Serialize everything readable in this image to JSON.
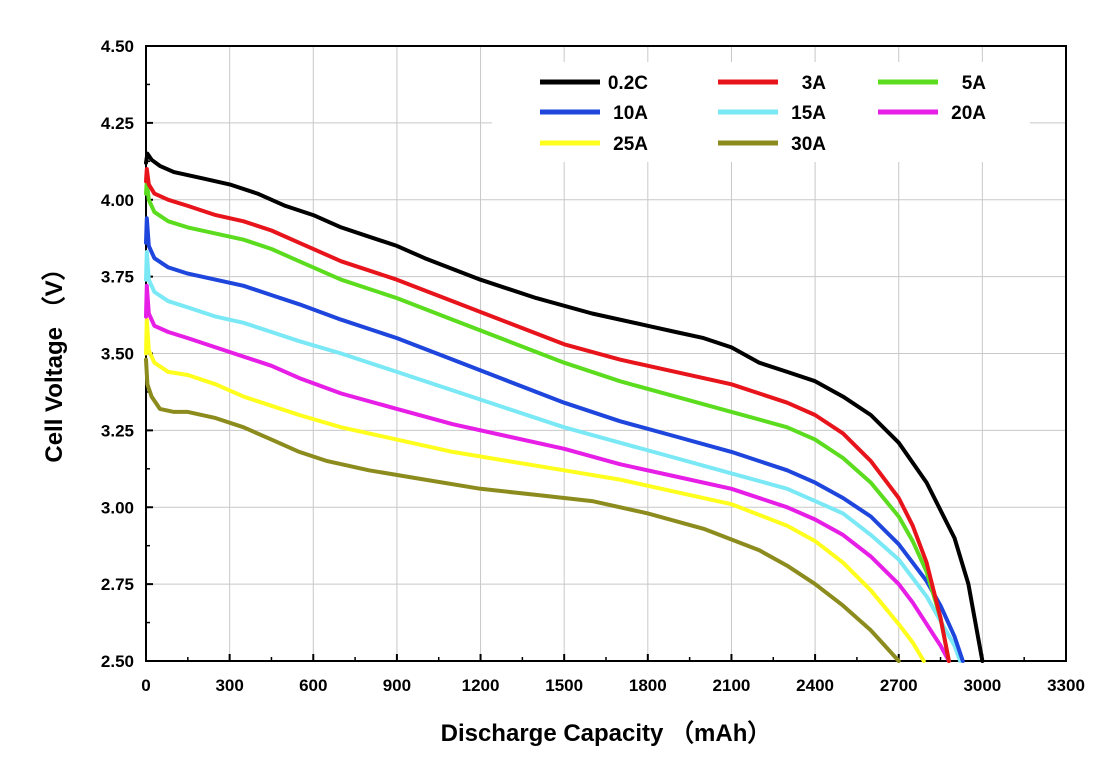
{
  "chart_data": {
    "type": "line",
    "xlabel": "Discharge Capacity （mAh）",
    "ylabel": "Cell Voltage （V）",
    "xlim": [
      0,
      3300
    ],
    "ylim": [
      2.5,
      4.5
    ],
    "x_ticks": [
      "0",
      "300",
      "600",
      "900",
      "1200",
      "1500",
      "1800",
      "2100",
      "2400",
      "2700",
      "3000",
      "3300"
    ],
    "y_ticks": [
      "2.50",
      "2.75",
      "3.00",
      "3.25",
      "3.50",
      "3.75",
      "4.00",
      "4.25",
      "4.50"
    ],
    "grid": true,
    "legend_position": "top-right",
    "series": [
      {
        "name": "0.2C",
        "color": "#000000",
        "x": [
          0,
          5,
          20,
          50,
          100,
          200,
          300,
          400,
          500,
          600,
          700,
          800,
          900,
          1000,
          1200,
          1400,
          1600,
          1800,
          1900,
          2000,
          2100,
          2200,
          2300,
          2400,
          2500,
          2600,
          2700,
          2800,
          2900,
          2950,
          2980,
          3000
        ],
        "y": [
          4.12,
          4.15,
          4.13,
          4.11,
          4.09,
          4.07,
          4.05,
          4.02,
          3.98,
          3.95,
          3.91,
          3.88,
          3.85,
          3.81,
          3.74,
          3.68,
          3.63,
          3.59,
          3.57,
          3.55,
          3.52,
          3.47,
          3.44,
          3.41,
          3.36,
          3.3,
          3.21,
          3.08,
          2.9,
          2.75,
          2.6,
          2.5
        ]
      },
      {
        "name": "3A",
        "color": "#e8141c",
        "x": [
          0,
          3,
          10,
          30,
          80,
          150,
          250,
          350,
          450,
          550,
          700,
          900,
          1100,
          1300,
          1500,
          1700,
          1900,
          2100,
          2300,
          2400,
          2500,
          2600,
          2700,
          2750,
          2800,
          2850,
          2880
        ],
        "y": [
          4.06,
          4.1,
          4.05,
          4.02,
          4.0,
          3.98,
          3.95,
          3.93,
          3.9,
          3.86,
          3.8,
          3.74,
          3.67,
          3.6,
          3.53,
          3.48,
          3.44,
          3.4,
          3.34,
          3.3,
          3.24,
          3.15,
          3.03,
          2.94,
          2.82,
          2.64,
          2.5
        ]
      },
      {
        "name": "5A",
        "color": "#5cdc1e",
        "x": [
          0,
          3,
          10,
          30,
          80,
          150,
          250,
          350,
          450,
          550,
          700,
          900,
          1100,
          1300,
          1500,
          1700,
          1900,
          2100,
          2300,
          2400,
          2500,
          2600,
          2700,
          2750,
          2800,
          2850,
          2880
        ],
        "y": [
          4.02,
          4.06,
          4.0,
          3.96,
          3.93,
          3.91,
          3.89,
          3.87,
          3.84,
          3.8,
          3.74,
          3.68,
          3.61,
          3.54,
          3.47,
          3.41,
          3.36,
          3.31,
          3.26,
          3.22,
          3.16,
          3.08,
          2.97,
          2.89,
          2.79,
          2.64,
          2.5
        ]
      },
      {
        "name": "10A",
        "color": "#1e46dc",
        "x": [
          0,
          3,
          10,
          30,
          80,
          150,
          250,
          350,
          450,
          550,
          700,
          900,
          1100,
          1300,
          1500,
          1700,
          1900,
          2100,
          2300,
          2400,
          2500,
          2600,
          2700,
          2800,
          2850,
          2900,
          2930
        ],
        "y": [
          3.86,
          3.94,
          3.85,
          3.81,
          3.78,
          3.76,
          3.74,
          3.72,
          3.69,
          3.66,
          3.61,
          3.55,
          3.48,
          3.41,
          3.34,
          3.28,
          3.23,
          3.18,
          3.12,
          3.08,
          3.03,
          2.97,
          2.88,
          2.76,
          2.68,
          2.58,
          2.5
        ]
      },
      {
        "name": "15A",
        "color": "#7ae8f5",
        "x": [
          0,
          3,
          10,
          30,
          80,
          150,
          250,
          350,
          450,
          550,
          700,
          900,
          1100,
          1300,
          1500,
          1700,
          1900,
          2100,
          2300,
          2400,
          2500,
          2600,
          2700,
          2800,
          2850,
          2900,
          2920
        ],
        "y": [
          3.74,
          3.83,
          3.74,
          3.7,
          3.67,
          3.65,
          3.62,
          3.6,
          3.57,
          3.54,
          3.5,
          3.44,
          3.38,
          3.32,
          3.26,
          3.21,
          3.16,
          3.11,
          3.06,
          3.02,
          2.98,
          2.91,
          2.83,
          2.71,
          2.63,
          2.55,
          2.5
        ]
      },
      {
        "name": "20A",
        "color": "#e61ee6",
        "x": [
          0,
          3,
          10,
          30,
          80,
          150,
          250,
          350,
          450,
          550,
          700,
          900,
          1100,
          1300,
          1500,
          1700,
          1900,
          2100,
          2300,
          2400,
          2500,
          2600,
          2700,
          2750,
          2800,
          2850,
          2880
        ],
        "y": [
          3.62,
          3.72,
          3.63,
          3.59,
          3.57,
          3.55,
          3.52,
          3.49,
          3.46,
          3.42,
          3.37,
          3.32,
          3.27,
          3.23,
          3.19,
          3.14,
          3.1,
          3.06,
          3.0,
          2.96,
          2.91,
          2.84,
          2.75,
          2.69,
          2.62,
          2.55,
          2.5
        ]
      },
      {
        "name": "25A",
        "color": "#ffff1e",
        "x": [
          0,
          3,
          10,
          30,
          80,
          150,
          250,
          350,
          450,
          550,
          700,
          900,
          1100,
          1300,
          1500,
          1700,
          1900,
          2100,
          2300,
          2400,
          2500,
          2600,
          2700,
          2750,
          2790
        ],
        "y": [
          3.5,
          3.61,
          3.51,
          3.47,
          3.44,
          3.43,
          3.4,
          3.36,
          3.33,
          3.3,
          3.26,
          3.22,
          3.18,
          3.15,
          3.12,
          3.09,
          3.05,
          3.01,
          2.94,
          2.89,
          2.82,
          2.73,
          2.62,
          2.56,
          2.5
        ]
      },
      {
        "name": "30A",
        "color": "#8c8c1e",
        "x": [
          0,
          5,
          20,
          50,
          100,
          150,
          250,
          350,
          450,
          550,
          650,
          800,
          1000,
          1200,
          1400,
          1600,
          1800,
          2000,
          2200,
          2300,
          2400,
          2500,
          2600,
          2650,
          2700
        ],
        "y": [
          3.48,
          3.4,
          3.36,
          3.32,
          3.31,
          3.31,
          3.29,
          3.26,
          3.22,
          3.18,
          3.15,
          3.12,
          3.09,
          3.06,
          3.04,
          3.02,
          2.98,
          2.93,
          2.86,
          2.81,
          2.75,
          2.68,
          2.6,
          2.55,
          2.5
        ]
      }
    ]
  }
}
